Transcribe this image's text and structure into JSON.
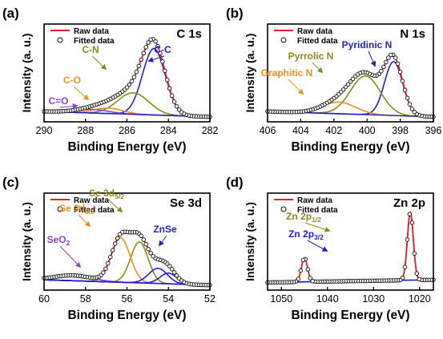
{
  "chart_data": [
    {
      "panel_label": "(a)",
      "element": "C 1s",
      "type": "line",
      "xlabel": "Binding Energy (eV)",
      "ylabel": "Intensity (a. u.)",
      "xlim": [
        290,
        282
      ],
      "ylim": [
        0,
        1
      ],
      "xticks": [
        "290",
        "288",
        "286",
        "284",
        "282"
      ],
      "legend": [
        "Raw data",
        "Fitted data"
      ],
      "legend_position": "top-left",
      "peaks": [
        {
          "name": "C-C",
          "center": 284.7,
          "height": 0.74,
          "width": 0.55,
          "color": "#2222cc"
        },
        {
          "name": "C-N",
          "center": 285.7,
          "height": 0.24,
          "width": 0.75,
          "color": "#8a8a1e"
        },
        {
          "name": "C-O",
          "center": 286.9,
          "height": 0.06,
          "width": 0.7,
          "color": "#f0901a"
        },
        {
          "name": "C=O",
          "center": 287.7,
          "height": 0.04,
          "width": 0.8,
          "color": "#8e44d6"
        }
      ],
      "annotations": [
        {
          "text": "C-C",
          "color": "#2222cc"
        },
        {
          "text": "C-N",
          "color": "#8a8a1e"
        },
        {
          "text": "C-O",
          "color": "#f0901a"
        },
        {
          "text": "C=O",
          "color": "#8e44d6"
        }
      ]
    },
    {
      "panel_label": "(b)",
      "element": "N 1s",
      "type": "line",
      "xlabel": "Binding Energy (eV)",
      "ylabel": "Intensity (a. u.)",
      "xlim": [
        406,
        396
      ],
      "ylim": [
        0,
        1
      ],
      "xticks": [
        "406",
        "404",
        "402",
        "400",
        "398",
        "396"
      ],
      "legend": [
        "Raw data",
        "Fitted data"
      ],
      "legend_position": "top-left",
      "peaks": [
        {
          "name": "Pyridinic N",
          "center": 398.4,
          "height": 0.6,
          "width": 0.55,
          "color": "#2222cc"
        },
        {
          "name": "Pyrrolic N",
          "center": 400.1,
          "height": 0.43,
          "width": 0.9,
          "color": "#8a8a1e"
        },
        {
          "name": "Graphitic N",
          "center": 401.7,
          "height": 0.13,
          "width": 1.0,
          "color": "#f0901a"
        }
      ],
      "annotations": [
        {
          "text": "Pyridinic N",
          "color": "#2222cc"
        },
        {
          "text": "Pyrrolic N",
          "color": "#8a8a1e"
        },
        {
          "text": "Graphitic N",
          "color": "#f0901a"
        }
      ]
    },
    {
      "panel_label": "(c)",
      "element": "Se 3d",
      "type": "line",
      "xlabel": "Binding Energy (eV)",
      "ylabel": "Intensity (a. u.)",
      "xlim": [
        60,
        52
      ],
      "ylim": [
        0,
        1
      ],
      "xticks": [
        "60",
        "58",
        "56",
        "54",
        "52"
      ],
      "legend": [
        "Raw data",
        "Fitted data"
      ],
      "legend_position": "top-left",
      "peaks": [
        {
          "name": "Se 3d5/2",
          "center": 55.4,
          "height": 0.46,
          "width": 0.42,
          "color": "#8a8a1e"
        },
        {
          "name": "Se 3d3/2",
          "center": 56.3,
          "height": 0.5,
          "width": 0.45,
          "color": "#f0901a"
        },
        {
          "name": "ZnSe",
          "center": 54.5,
          "height": 0.17,
          "width": 0.45,
          "color": "#2222cc"
        },
        {
          "name": "ZnSe",
          "center": 54.0,
          "height": 0.12,
          "width": 0.4,
          "color": "#2222cc"
        },
        {
          "name": "SeO2",
          "center": 58.6,
          "height": 0.06,
          "width": 0.9,
          "color": "#8e44d6"
        }
      ],
      "annotations": [
        {
          "text": "Se 3d",
          "sub": "5/2",
          "color": "#8a8a1e"
        },
        {
          "text": "Se 3d",
          "sub": "3/2",
          "color": "#f0901a"
        },
        {
          "text": "ZnSe",
          "sub": "",
          "color": "#2222cc"
        },
        {
          "text": "SeO",
          "sub": "2",
          "color": "#8e44d6"
        }
      ]
    },
    {
      "panel_label": "(d)",
      "element": "Zn 2p",
      "type": "line",
      "xlabel": "Binding Energy (eV)",
      "ylabel": "Intensity (a. u.)",
      "xlim": [
        1053,
        1017
      ],
      "ylim": [
        0,
        1
      ],
      "xticks": [
        "1050",
        "1040",
        "1030",
        "1020"
      ],
      "legend": [
        "Raw data",
        "Fitted data"
      ],
      "legend_position": "top-left",
      "peaks": [
        {
          "name": "Zn 2p3/2",
          "center": 1022.0,
          "height": 0.76,
          "width": 0.65,
          "color": "#2222cc"
        },
        {
          "name": "Zn 2p1/2",
          "center": 1045.0,
          "height": 0.27,
          "width": 0.65,
          "color": "#8a8a1e"
        }
      ],
      "annotations": [
        {
          "text": "Zn 2p",
          "sub": "3/2",
          "color": "#2222cc"
        },
        {
          "text": "Zn 2p",
          "sub": "1/2",
          "color": "#8a8a1e"
        }
      ]
    }
  ]
}
